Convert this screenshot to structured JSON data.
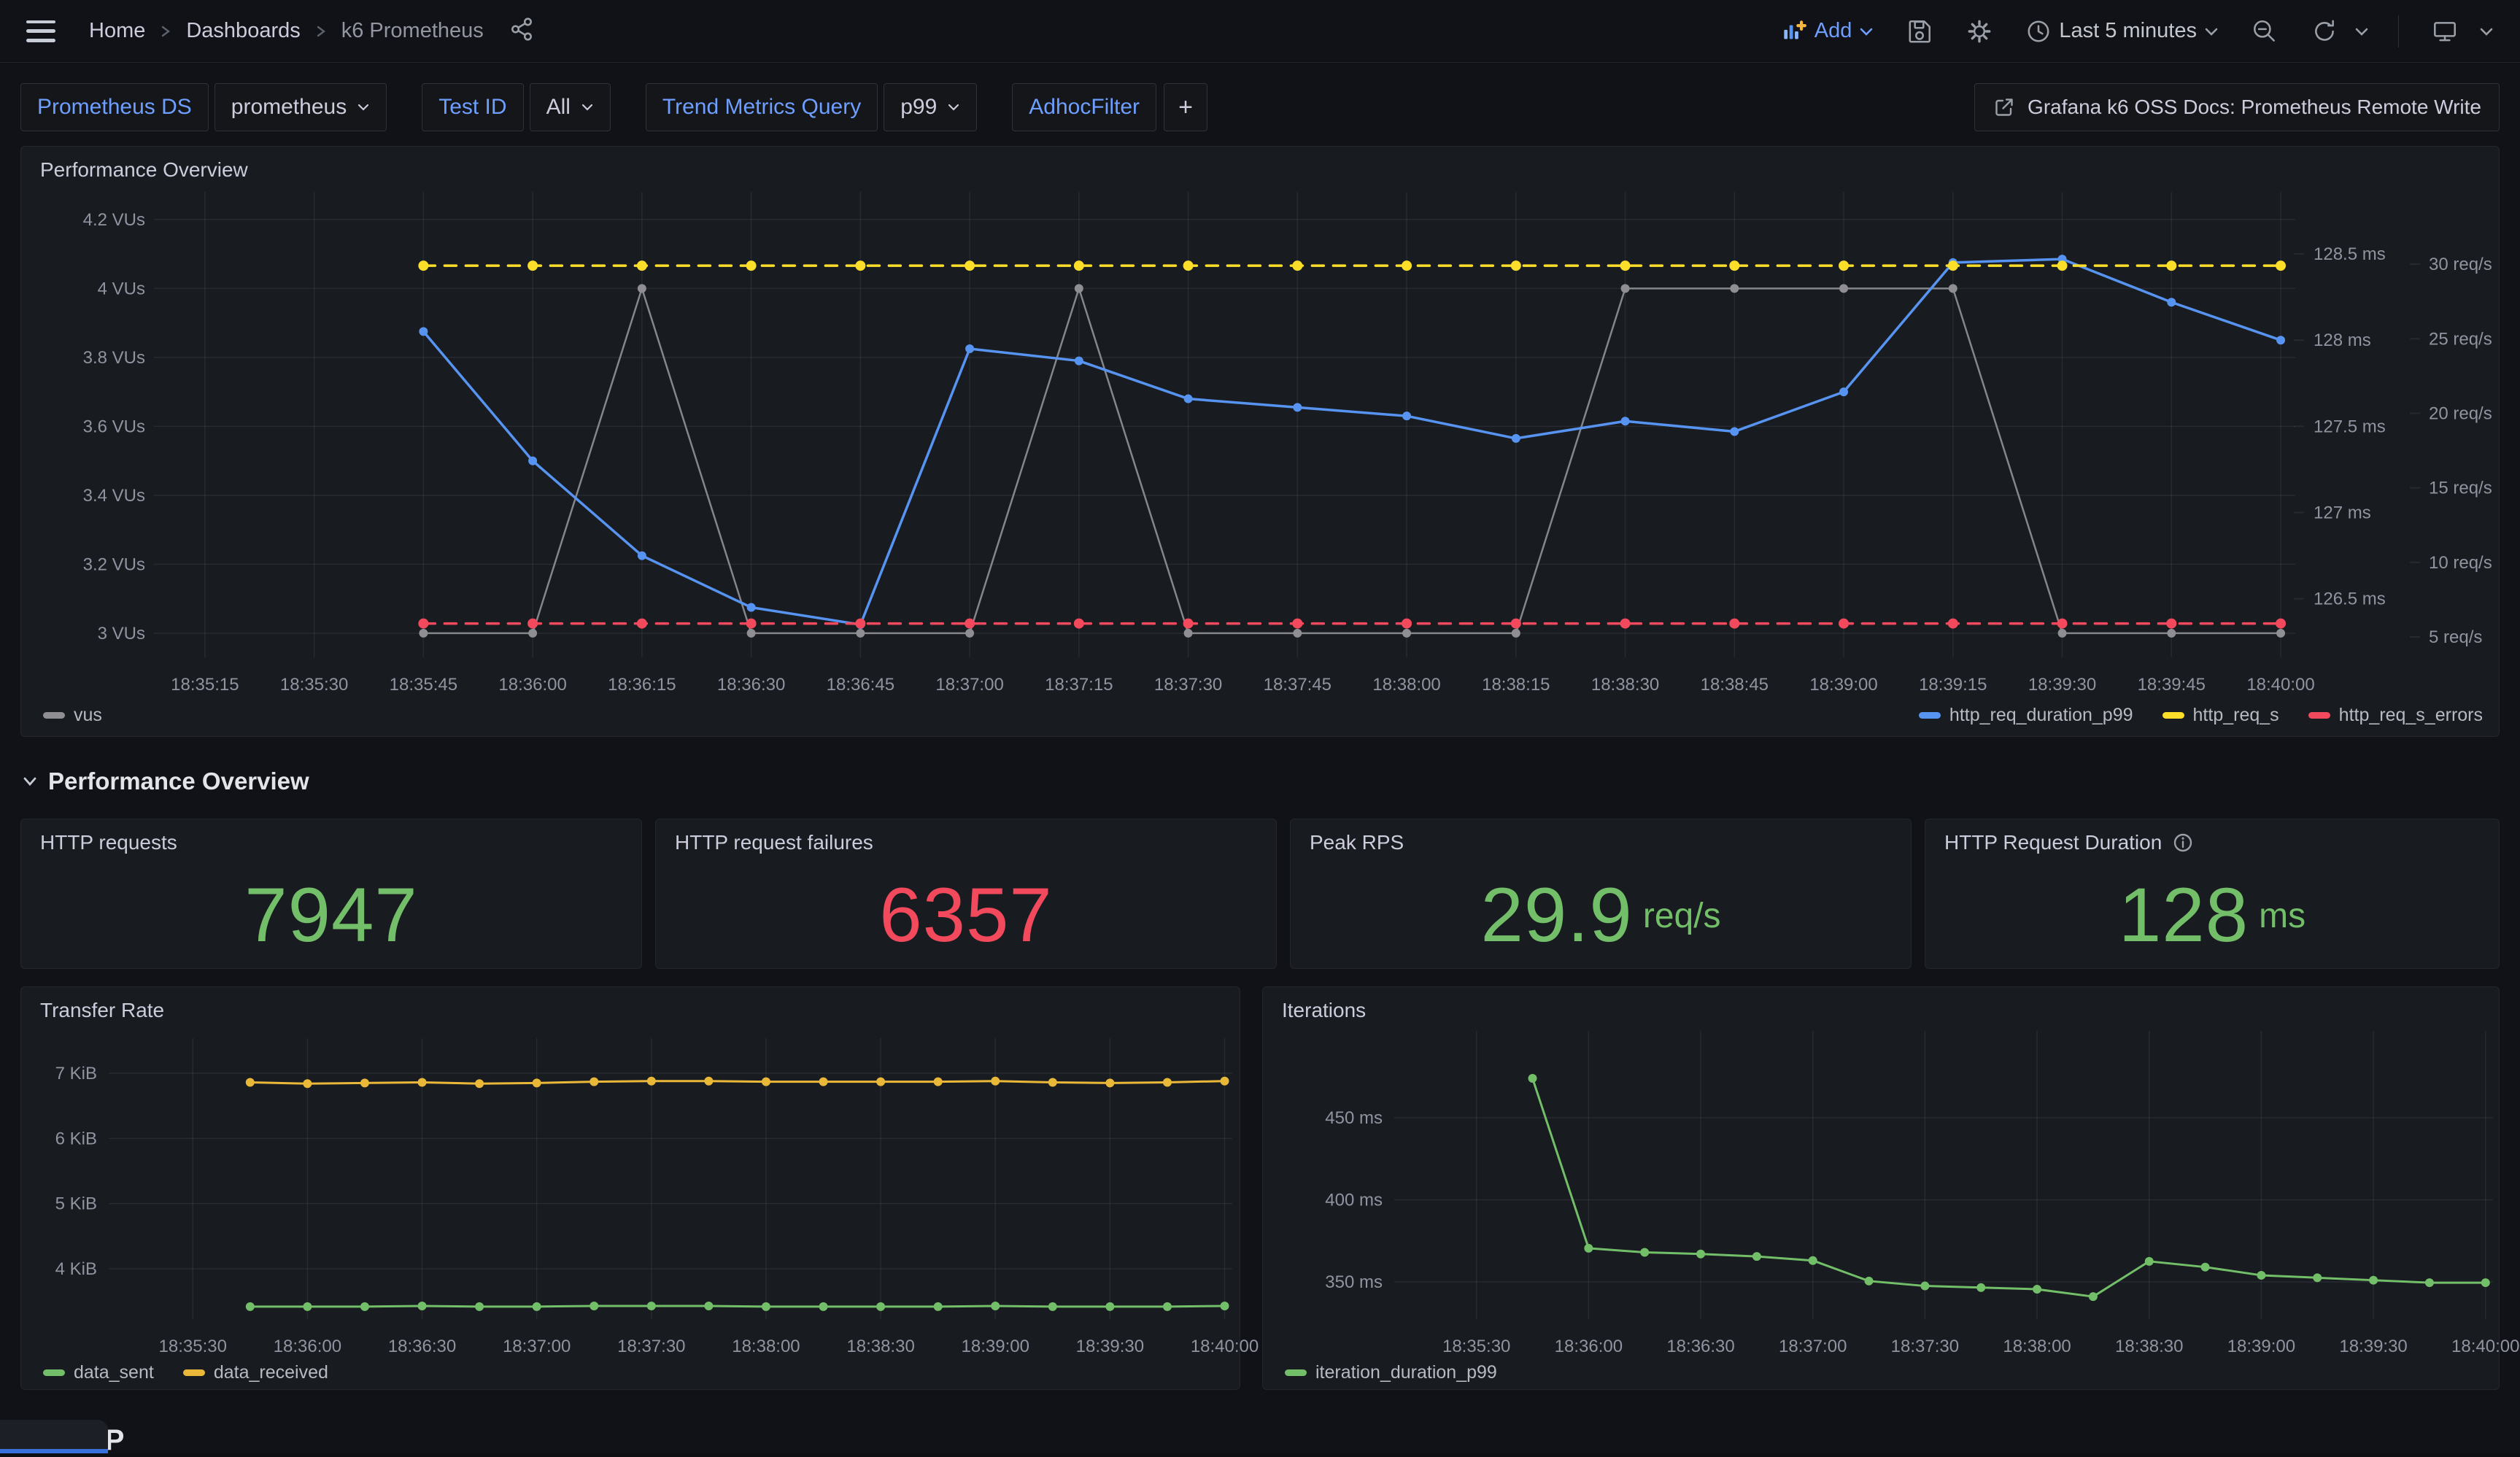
{
  "nav": {
    "breadcrumb": [
      "Home",
      "Dashboards",
      "k6 Prometheus"
    ],
    "add_label": "Add",
    "time_range_label": "Last 5 minutes"
  },
  "variables": [
    {
      "label": "Prometheus DS",
      "value": "prometheus"
    },
    {
      "label": "Test ID",
      "value": "All"
    },
    {
      "label": "Trend Metrics Query",
      "value": "p99"
    },
    {
      "label": "AdhocFilter",
      "value": ""
    }
  ],
  "add_filter_label": "+",
  "docs_link_label": "Grafana k6 OSS Docs: Prometheus Remote Write",
  "sections": {
    "overview": "Performance Overview",
    "http": "HTTP"
  },
  "stats": [
    {
      "title": "HTTP requests",
      "value": "7947",
      "unit": "",
      "color": "#73BF69"
    },
    {
      "title": "HTTP request failures",
      "value": "6357",
      "unit": "",
      "color": "#F2495C"
    },
    {
      "title": "Peak RPS",
      "value": "29.9",
      "unit": "req/s",
      "color": "#73BF69"
    },
    {
      "title": "HTTP Request Duration",
      "value": "128",
      "unit": "ms",
      "color": "#73BF69"
    }
  ],
  "colors": {
    "background": "#111217",
    "panel": "#181b1f",
    "blue": "#5794F2",
    "yellow": "#FADE2A",
    "gold": "#EAB839",
    "red": "#F2495C",
    "green": "#73BF69",
    "gray": "#8e8e93",
    "link_blue": "#6e9fff"
  },
  "chart_data": [
    {
      "id": "chart-main",
      "type": "line",
      "title": "Performance Overview",
      "x_seconds": [
        45,
        60,
        75,
        90,
        105,
        120,
        135,
        150,
        165,
        180,
        195,
        210,
        225,
        240,
        255,
        270,
        285,
        300
      ],
      "x_times": [
        "18:35:45",
        "18:36:00",
        "18:36:15",
        "18:36:30",
        "18:36:45",
        "18:37:00",
        "18:37:15",
        "18:37:30",
        "18:37:45",
        "18:38:00",
        "18:38:15",
        "18:38:30",
        "18:38:45",
        "18:39:00",
        "18:39:15",
        "18:39:30",
        "18:39:45",
        "18:40:00"
      ],
      "xticks": {
        "seconds": [
          15,
          30,
          45,
          60,
          75,
          90,
          105,
          120,
          135,
          150,
          165,
          180,
          195,
          210,
          225,
          240,
          255,
          270,
          285,
          300
        ],
        "labels": [
          "18:35:15",
          "18:35:30",
          "18:35:45",
          "18:36:00",
          "18:36:15",
          "18:36:30",
          "18:36:45",
          "18:37:00",
          "18:37:15",
          "18:37:30",
          "18:37:45",
          "18:38:00",
          "18:38:15",
          "18:38:30",
          "18:38:45",
          "18:39:00",
          "18:39:15",
          "18:39:30",
          "18:39:45",
          "18:40:00"
        ]
      },
      "xlim_seconds": [
        8,
        302
      ],
      "axes": {
        "vus": {
          "side": "left",
          "min": 2.93,
          "max": 4.28,
          "ticks": [
            {
              "v": 4.2,
              "label": "4.2 VUs"
            },
            {
              "v": 4,
              "label": "4 VUs"
            },
            {
              "v": 3.8,
              "label": "3.8 VUs"
            },
            {
              "v": 3.6,
              "label": "3.6 VUs"
            },
            {
              "v": 3.4,
              "label": "3.4 VUs"
            },
            {
              "v": 3.2,
              "label": "3.2 VUs"
            },
            {
              "v": 3,
              "label": "3 VUs"
            }
          ]
        },
        "ms": {
          "side": "right",
          "min": 126.16,
          "max": 128.86,
          "ticks": [
            {
              "v": 128.5,
              "label": "128.5 ms"
            },
            {
              "v": 128,
              "label": "128 ms"
            },
            {
              "v": 127.5,
              "label": "127.5 ms"
            },
            {
              "v": 127,
              "label": "127 ms"
            },
            {
              "v": 126.5,
              "label": "126.5 ms"
            }
          ]
        },
        "rps": {
          "side": "right-outer",
          "min": 3.63,
          "max": 34.85,
          "ticks": [
            {
              "v": 30,
              "label": "30 req/s"
            },
            {
              "v": 25,
              "label": "25 req/s"
            },
            {
              "v": 20,
              "label": "20 req/s"
            },
            {
              "v": 15,
              "label": "15 req/s"
            },
            {
              "v": 10,
              "label": "10 req/s"
            },
            {
              "v": 5,
              "label": "5 req/s"
            }
          ]
        }
      },
      "series": [
        {
          "name": "vus",
          "color": "#8e8e93",
          "line_color": "#84868c",
          "axis": "vus",
          "style": "solid",
          "width": 2.5,
          "r": 6,
          "values": [
            3,
            3,
            4,
            3,
            3,
            3,
            4,
            3,
            3,
            3,
            3,
            4,
            4,
            4,
            4,
            3,
            3,
            3
          ]
        },
        {
          "name": "http_req_duration_p99",
          "color": "#5794F2",
          "line_color": "#5794F2",
          "axis": "ms",
          "style": "solid",
          "width": 3.5,
          "r": 6,
          "values": [
            128.05,
            127.3,
            126.75,
            126.45,
            126.35,
            127.95,
            127.88,
            127.66,
            127.61,
            127.56,
            127.43,
            127.53,
            127.47,
            127.7,
            128.45,
            128.47,
            128.22,
            128.0
          ]
        },
        {
          "name": "http_req_s",
          "color": "#FADE2A",
          "line_color": "#FADE2A",
          "axis": "rps",
          "style": "dashed",
          "width": 3.5,
          "r": 7,
          "values": [
            29.9,
            29.9,
            29.9,
            29.9,
            29.9,
            29.9,
            29.9,
            29.9,
            29.9,
            29.9,
            29.9,
            29.9,
            29.9,
            29.9,
            29.9,
            29.9,
            29.9,
            29.9
          ]
        },
        {
          "name": "http_req_s_errors",
          "color": "#F2495C",
          "line_color": "#F2495C",
          "axis": "rps",
          "style": "dashed",
          "width": 3.5,
          "r": 7,
          "values": [
            5.9,
            5.9,
            5.9,
            5.9,
            5.9,
            5.9,
            5.9,
            5.9,
            5.9,
            5.9,
            5.9,
            5.9,
            5.9,
            5.9,
            5.9,
            5.9,
            5.9,
            5.9
          ]
        }
      ],
      "legend_position": "bottom"
    },
    {
      "id": "chart-transfer",
      "type": "line",
      "title": "Transfer Rate",
      "x_seconds": [
        45,
        60,
        75,
        90,
        105,
        120,
        135,
        150,
        165,
        180,
        195,
        210,
        225,
        240,
        255,
        270,
        285,
        300
      ],
      "xticks": {
        "seconds": [
          30,
          60,
          90,
          120,
          150,
          180,
          210,
          240,
          270,
          300
        ],
        "labels": [
          "18:35:30",
          "18:36:00",
          "18:36:30",
          "18:37:00",
          "18:37:30",
          "18:38:00",
          "18:38:30",
          "18:39:00",
          "18:39:30",
          "18:40:00"
        ]
      },
      "xlim_seconds": [
        8,
        302
      ],
      "axes": {
        "kib": {
          "side": "left",
          "min": 3.228,
          "max": 7.537,
          "ticks": [
            {
              "v": 7,
              "label": "7 KiB"
            },
            {
              "v": 6,
              "label": "6 KiB"
            },
            {
              "v": 5,
              "label": "5 KiB"
            },
            {
              "v": 4,
              "label": "4 KiB"
            }
          ]
        }
      },
      "series": [
        {
          "name": "data_sent",
          "color": "#73BF69",
          "line_color": "#73BF69",
          "axis": "kib",
          "style": "solid",
          "width": 3,
          "r": 6,
          "values": [
            3.42,
            3.42,
            3.42,
            3.43,
            3.42,
            3.42,
            3.43,
            3.43,
            3.43,
            3.42,
            3.42,
            3.42,
            3.42,
            3.43,
            3.42,
            3.42,
            3.42,
            3.43
          ]
        },
        {
          "name": "data_received",
          "color": "#EAB839",
          "line_color": "#EAB839",
          "axis": "kib",
          "style": "solid",
          "width": 3,
          "r": 6,
          "values": [
            6.86,
            6.84,
            6.85,
            6.86,
            6.84,
            6.85,
            6.87,
            6.88,
            6.88,
            6.87,
            6.87,
            6.87,
            6.87,
            6.88,
            6.86,
            6.85,
            6.86,
            6.88
          ]
        }
      ],
      "legend_position": "bottom-left"
    },
    {
      "id": "chart-iterations",
      "type": "line",
      "title": "Iterations",
      "x_seconds": [
        45,
        60,
        75,
        90,
        105,
        120,
        135,
        150,
        165,
        180,
        195,
        210,
        225,
        240,
        255,
        270,
        285,
        300
      ],
      "xticks": {
        "seconds": [
          30,
          60,
          90,
          120,
          150,
          180,
          210,
          240,
          270,
          300
        ],
        "labels": [
          "18:35:30",
          "18:36:00",
          "18:36:30",
          "18:37:00",
          "18:37:30",
          "18:38:00",
          "18:38:30",
          "18:39:00",
          "18:39:30",
          "18:40:00"
        ]
      },
      "xlim_seconds": [
        8,
        302
      ],
      "axes": {
        "ms": {
          "side": "left",
          "min": 327.3,
          "max": 502.9,
          "ticks": [
            {
              "v": 450,
              "label": "450 ms"
            },
            {
              "v": 400,
              "label": "400 ms"
            },
            {
              "v": 350,
              "label": "350 ms"
            }
          ]
        }
      },
      "series": [
        {
          "name": "iteration_duration_p99",
          "color": "#73BF69",
          "line_color": "#73BF69",
          "axis": "ms",
          "style": "solid",
          "width": 3,
          "r": 6,
          "values": [
            474,
            370.5,
            368,
            367,
            365.5,
            363,
            350.5,
            347.5,
            346.5,
            345.5,
            341,
            362.5,
            359,
            354,
            352.5,
            351,
            349.5,
            349.5
          ]
        }
      ],
      "legend_position": "bottom-left"
    }
  ]
}
